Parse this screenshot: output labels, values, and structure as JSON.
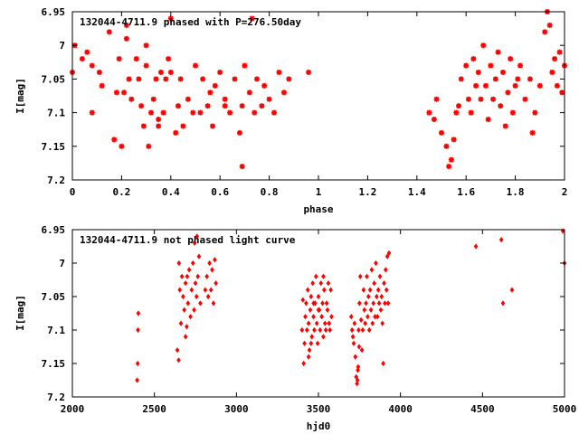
{
  "chart_data": [
    {
      "type": "scatter",
      "title": "132044-4711.9 phased with P=276.50day",
      "xlabel": "phase",
      "ylabel": "I[mag]",
      "xlim": [
        0,
        2
      ],
      "ylim": [
        7.2,
        6.95
      ],
      "y_inverted": true,
      "x_ticks": [
        "0",
        "0.2",
        "0.4",
        "0.6",
        "0.8",
        "1",
        "1.2",
        "1.4",
        "1.6",
        "1.8",
        "2"
      ],
      "x_tick_values": [
        0,
        0.2,
        0.4,
        0.6,
        0.8,
        1.0,
        1.2,
        1.4,
        1.6,
        1.8,
        2.0
      ],
      "y_ticks": [
        "6.95",
        "7",
        "7.05",
        "7.1",
        "7.15",
        "7.2"
      ],
      "y_tick_values": [
        6.95,
        7.0,
        7.05,
        7.1,
        7.15,
        7.2
      ],
      "marker_color": "#ff0000",
      "marker": "asterisk",
      "series": [
        {
          "x": [
            0.0,
            0.01,
            0.04,
            0.06,
            0.08,
            0.11,
            0.12,
            0.15,
            0.17,
            0.18,
            0.19,
            0.21,
            0.22,
            0.23,
            0.24,
            0.26,
            0.27,
            0.28,
            0.29,
            0.3,
            0.31,
            0.32,
            0.33,
            0.34,
            0.35,
            0.36,
            0.37,
            0.38,
            0.39,
            0.4,
            0.42,
            0.43,
            0.44,
            0.45,
            0.47,
            0.5,
            0.52,
            0.53,
            0.55,
            0.57,
            0.58,
            0.6,
            0.62,
            0.64,
            0.66,
            0.68,
            0.69,
            0.7,
            0.72,
            0.74,
            0.75,
            0.77,
            0.78,
            0.8,
            0.82,
            0.84,
            0.86,
            0.88,
            0.96,
            0.22,
            0.4,
            0.56,
            0.69,
            0.3,
            0.49,
            0.08,
            0.35,
            0.62,
            0.2,
            0.73
          ],
          "y": [
            7.04,
            7.0,
            7.02,
            7.01,
            7.1,
            7.04,
            7.06,
            6.98,
            7.14,
            7.07,
            7.02,
            7.07,
            6.97,
            7.05,
            7.08,
            7.02,
            7.05,
            7.09,
            7.12,
            7.03,
            7.15,
            7.1,
            7.08,
            7.05,
            7.12,
            7.04,
            7.1,
            7.05,
            7.02,
            7.04,
            7.13,
            7.09,
            7.05,
            7.12,
            7.08,
            7.03,
            7.1,
            7.05,
            7.09,
            7.12,
            7.06,
            7.04,
            7.08,
            7.1,
            7.05,
            7.13,
            7.18,
            7.03,
            7.07,
            7.1,
            7.05,
            7.09,
            7.06,
            7.08,
            7.1,
            7.04,
            7.07,
            7.05,
            7.04,
            6.99,
            6.96,
            7.07,
            7.09,
            7.0,
            7.1,
            7.03,
            7.11,
            7.09,
            7.15,
            6.96
          ]
        },
        {
          "x": [
            1.45,
            1.47,
            1.48,
            1.5,
            1.52,
            1.54,
            1.56,
            1.57,
            1.58,
            1.6,
            1.62,
            1.63,
            1.65,
            1.66,
            1.67,
            1.68,
            1.7,
            1.71,
            1.72,
            1.73,
            1.74,
            1.75,
            1.76,
            1.77,
            1.78,
            1.79,
            1.8,
            1.82,
            1.84,
            1.86,
            1.88,
            1.9,
            1.92,
            1.93,
            1.95,
            1.96,
            1.97,
            1.98,
            1.99,
            2.0,
            1.53,
            1.55,
            1.61,
            1.69,
            1.81,
            1.87,
            1.94,
            1.64
          ],
          "y": [
            7.1,
            7.11,
            7.08,
            7.13,
            7.15,
            7.17,
            7.1,
            7.09,
            7.05,
            7.03,
            7.1,
            7.02,
            7.04,
            7.08,
            7.0,
            7.06,
            7.03,
            7.08,
            7.05,
            7.01,
            7.09,
            7.04,
            7.12,
            7.07,
            7.02,
            7.1,
            7.06,
            7.03,
            7.08,
            7.05,
            7.1,
            7.06,
            6.98,
            6.95,
            7.04,
            7.02,
            7.06,
            7.01,
            7.07,
            7.03,
            7.18,
            7.14,
            7.08,
            7.11,
            7.05,
            7.13,
            6.97,
            7.06
          ]
        }
      ]
    },
    {
      "type": "scatter",
      "title": "132044-4711.9 not phased light curve",
      "xlabel": "hjd0",
      "ylabel": "I[mag]",
      "xlim": [
        2000,
        5000
      ],
      "ylim": [
        7.2,
        6.95
      ],
      "y_inverted": true,
      "x_ticks": [
        "2000",
        "2500",
        "3000",
        "3500",
        "4000",
        "4500",
        "5000"
      ],
      "x_tick_values": [
        2000,
        2500,
        3000,
        3500,
        4000,
        4500,
        5000
      ],
      "y_ticks": [
        "6.95",
        "7",
        "7.05",
        "7.1",
        "7.15",
        "7.2"
      ],
      "y_tick_values": [
        6.95,
        7.0,
        7.05,
        7.1,
        7.15,
        7.2
      ],
      "marker_color": "#ff0000",
      "marker": "diamond",
      "series": [
        {
          "x": [
            2395,
            2398,
            2400,
            2402,
            2640,
            2648,
            2655,
            2662,
            2668,
            2675,
            2682,
            2690,
            2697,
            2705,
            2712,
            2720,
            2727,
            2735,
            2742,
            2750,
            2757,
            2765,
            2772,
            2780,
            2820,
            2828,
            2836,
            2845,
            2852,
            2860,
            2868,
            2875,
            2650,
            2700,
            2760,
            2810,
            2690,
            2745
          ],
          "y": [
            7.175,
            7.15,
            7.1,
            7.075,
            7.13,
            7.145,
            7.04,
            7.09,
            7.02,
            7.05,
            7.07,
            7.03,
            7.095,
            7.06,
            7.01,
            7.08,
            7.04,
            7.0,
            7.07,
            7.03,
            7.05,
            7.02,
            6.99,
            7.06,
            7.02,
            7.05,
            7.0,
            7.04,
            7.01,
            7.06,
            6.995,
            7.03,
            7.0,
            7.02,
            6.96,
            7.04,
            7.11,
            6.97
          ]
        },
        {
          "x": [
            3400,
            3405,
            3410,
            3415,
            3420,
            3425,
            3430,
            3435,
            3440,
            3445,
            3450,
            3455,
            3460,
            3465,
            3470,
            3475,
            3480,
            3485,
            3490,
            3495,
            3500,
            3505,
            3510,
            3515,
            3520,
            3525,
            3530,
            3535,
            3540,
            3545,
            3550,
            3555,
            3560,
            3565,
            3570,
            3575,
            3580,
            3440,
            3470,
            3500,
            3530,
            3455
          ],
          "y": [
            7.1,
            7.055,
            7.15,
            7.12,
            7.08,
            7.06,
            7.1,
            7.04,
            7.09,
            7.13,
            7.07,
            7.05,
            7.11,
            7.03,
            7.08,
            7.1,
            7.06,
            7.02,
            7.09,
            7.12,
            7.05,
            7.07,
            7.1,
            7.03,
            7.08,
            7.06,
            7.11,
            7.04,
            7.09,
            7.1,
            7.06,
            7.07,
            7.03,
            7.09,
            7.1,
            7.04,
            7.08,
            7.14,
            7.06,
            7.07,
            7.02,
            7.12
          ]
        },
        {
          "x": [
            3700,
            3705,
            3710,
            3715,
            3720,
            3725,
            3730,
            3735,
            3740,
            3745,
            3750,
            3755,
            3760,
            3765,
            3770,
            3775,
            3780,
            3785,
            3790,
            3795,
            3800,
            3805,
            3810,
            3815,
            3820,
            3825,
            3830,
            3835,
            3840,
            3845,
            3850,
            3855,
            3860,
            3865,
            3870,
            3875,
            3880,
            3885,
            3890,
            3895,
            3900,
            3905,
            3910,
            3915,
            3920,
            3925,
            3930,
            3738,
            3742,
            3748
          ],
          "y": [
            7.08,
            7.1,
            7.11,
            7.12,
            7.09,
            7.14,
            7.17,
            7.18,
            7.16,
            7.1,
            7.06,
            7.02,
            7.085,
            7.13,
            7.1,
            7.04,
            7.07,
            7.09,
            7.06,
            7.02,
            7.08,
            7.05,
            7.1,
            7.04,
            7.07,
            7.01,
            7.09,
            7.06,
            7.03,
            7.08,
            7.0,
            7.05,
            7.08,
            7.04,
            7.06,
            7.02,
            7.07,
            7.05,
            7.09,
            7.15,
            7.03,
            7.06,
            7.01,
            7.04,
            6.99,
            7.06,
            6.985,
            7.175,
            7.155,
            7.125
          ]
        },
        {
          "x": [
            4460,
            4615,
            4625,
            4680,
            4990,
            5000
          ],
          "y": [
            6.975,
            6.965,
            7.06,
            7.04,
            6.952,
            7.0
          ]
        }
      ]
    }
  ]
}
